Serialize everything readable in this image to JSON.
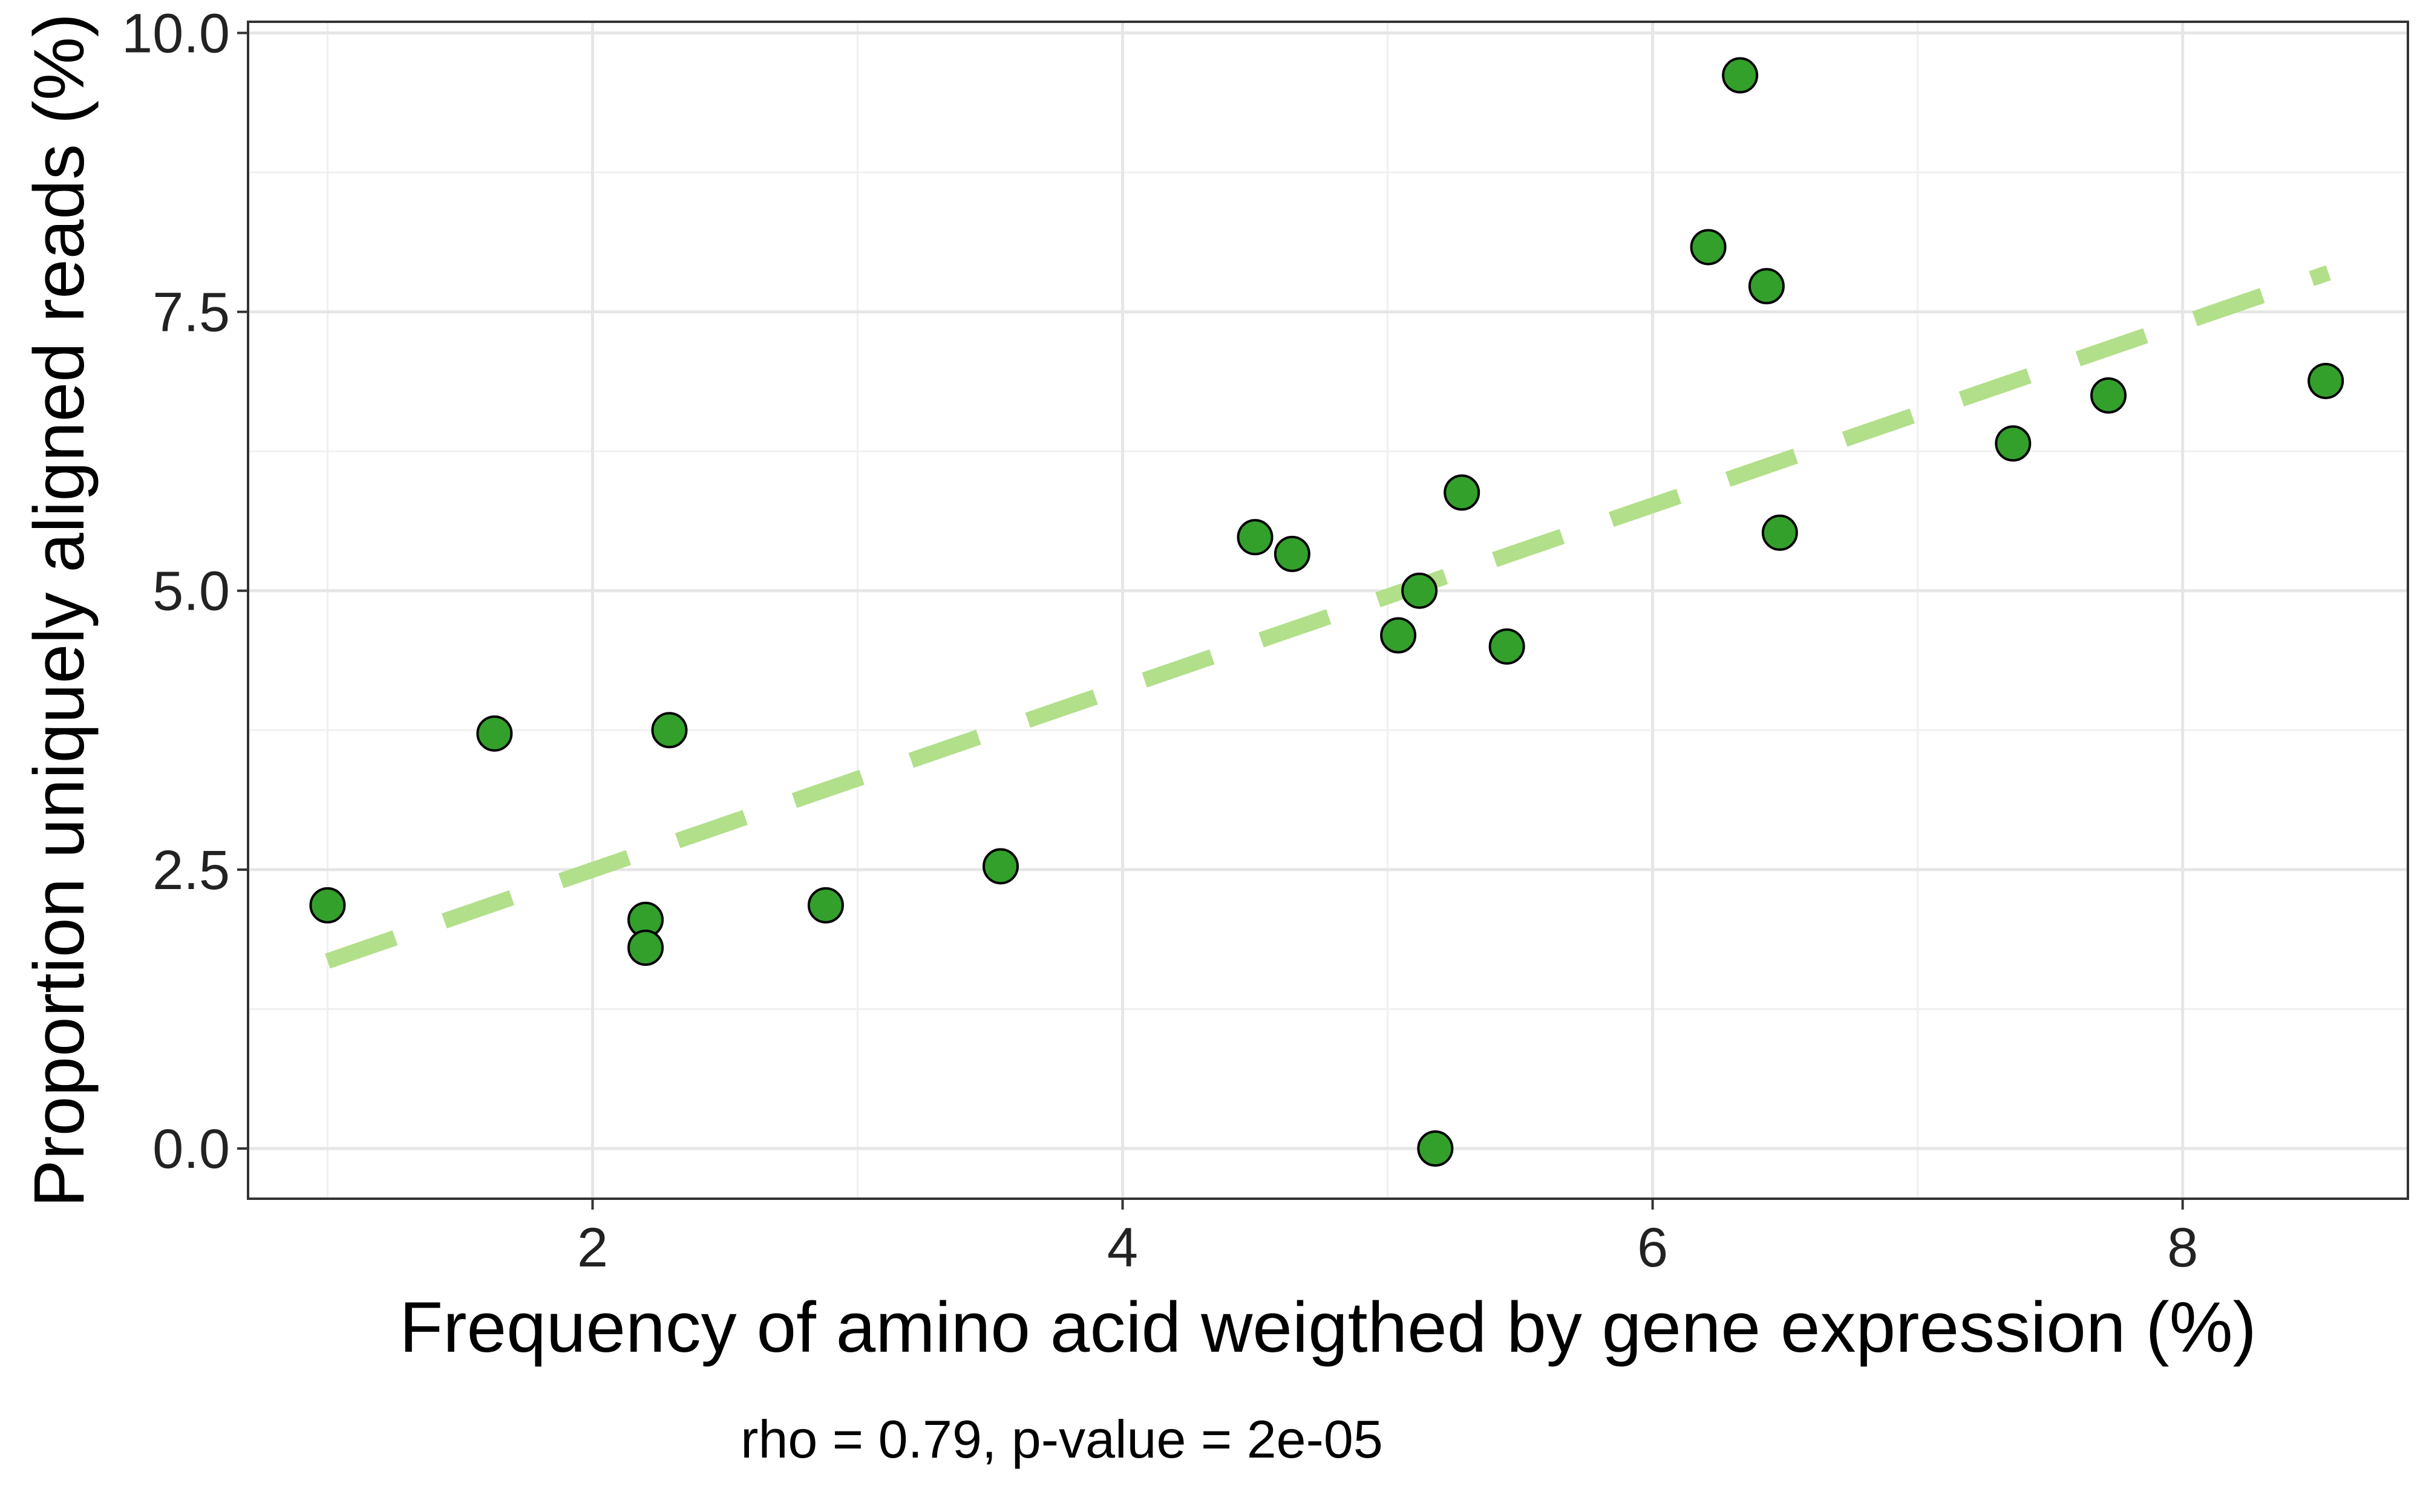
{
  "chart_data": {
    "type": "scatter",
    "title": "",
    "xlabel": "Frequency of amino acid weigthed by gene expression (%)",
    "ylabel": "Proportion uniquely aligned reads (%)",
    "caption": "rho = 0.79, p-value = 2e-05",
    "xlim": [
      0.7,
      8.85
    ],
    "ylim": [
      -0.45,
      10.1
    ],
    "x_ticks": [
      2,
      4,
      6,
      8
    ],
    "x_tick_labels": [
      "2",
      "4",
      "6",
      "8"
    ],
    "y_ticks": [
      0.0,
      2.5,
      5.0,
      7.5,
      10.0
    ],
    "y_tick_labels": [
      "0.0",
      "2.5",
      "5.0",
      "7.5",
      "10.0"
    ],
    "grid": true,
    "point_color": "#33a02c",
    "point_edge_color": "#000000",
    "trend_color": "#b2df8a",
    "trend_style": "dashed",
    "trendline": {
      "x": [
        1.0,
        8.55
      ],
      "y": [
        1.68,
        7.85
      ]
    },
    "points": [
      {
        "x": 1.0,
        "y": 2.18
      },
      {
        "x": 1.63,
        "y": 3.72
      },
      {
        "x": 2.2,
        "y": 2.05
      },
      {
        "x": 2.2,
        "y": 1.8
      },
      {
        "x": 2.29,
        "y": 3.75
      },
      {
        "x": 2.88,
        "y": 2.18
      },
      {
        "x": 3.54,
        "y": 2.53
      },
      {
        "x": 4.5,
        "y": 5.48
      },
      {
        "x": 4.64,
        "y": 5.33
      },
      {
        "x": 5.04,
        "y": 4.6
      },
      {
        "x": 5.12,
        "y": 5.0
      },
      {
        "x": 5.18,
        "y": 0.0
      },
      {
        "x": 5.28,
        "y": 5.88
      },
      {
        "x": 5.45,
        "y": 4.5
      },
      {
        "x": 6.21,
        "y": 8.08
      },
      {
        "x": 6.33,
        "y": 9.62
      },
      {
        "x": 6.43,
        "y": 7.73
      },
      {
        "x": 6.48,
        "y": 5.52
      },
      {
        "x": 7.36,
        "y": 6.32
      },
      {
        "x": 7.72,
        "y": 6.75
      },
      {
        "x": 8.54,
        "y": 6.88
      }
    ]
  }
}
